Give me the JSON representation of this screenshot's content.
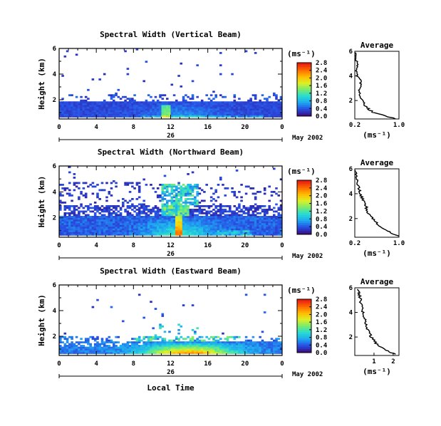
{
  "chart_data": [
    {
      "type": "heatmap",
      "title": "Spectral Width (Vertical Beam)",
      "ylabel": "Height (km)",
      "yticks": [
        "2",
        "4",
        "6"
      ],
      "ylim": [
        0.5,
        6
      ],
      "xticks": [
        "0",
        "4",
        "8",
        "12",
        "16",
        "20",
        "0"
      ],
      "xlim": [
        0,
        24
      ],
      "day_label": "26",
      "date_label": "May 2002",
      "colorbar": {
        "unit": "(ms⁻¹)",
        "ticks": [
          "0.0",
          "0.4",
          "0.8",
          "1.2",
          "1.6",
          "2.0",
          "2.4",
          "2.8"
        ],
        "range": [
          0,
          2.8
        ]
      },
      "average": {
        "title": "Average",
        "xlabel": "(ms⁻¹)",
        "xticks": [
          "0.2",
          "1.0"
        ],
        "xlim": [
          0.2,
          1.0
        ],
        "yticks": [
          "2",
          "4",
          "6"
        ],
        "ylim": [
          0.5,
          6
        ],
        "heights": [
          0.5,
          1.0,
          1.3,
          1.6,
          2.0,
          2.5,
          3.0,
          3.5,
          4.0,
          4.5,
          5.0,
          5.5,
          5.9
        ],
        "values": [
          0.95,
          0.55,
          0.45,
          0.38,
          0.33,
          0.3,
          0.28,
          0.32,
          0.25,
          0.22,
          0.26,
          0.21,
          0.2
        ]
      }
    },
    {
      "type": "heatmap",
      "title": "Spectral Width (Northward Beam)",
      "ylabel": "Height (km)",
      "yticks": [
        "2",
        "4",
        "6"
      ],
      "ylim": [
        0.5,
        6
      ],
      "xticks": [
        "0",
        "4",
        "8",
        "12",
        "16",
        "20",
        "0"
      ],
      "xlim": [
        0,
        24
      ],
      "day_label": "26",
      "date_label": "May 2002",
      "colorbar": {
        "unit": "(ms⁻¹)",
        "ticks": [
          "0.0",
          "0.4",
          "0.8",
          "1.2",
          "1.6",
          "2.0",
          "2.4",
          "2.8"
        ],
        "range": [
          0,
          2.8
        ]
      },
      "average": {
        "title": "Average",
        "xlabel": "(ms⁻¹)",
        "xticks": [
          "0.2",
          "1.0"
        ],
        "xlim": [
          0.2,
          1.0
        ],
        "yticks": [
          "2",
          "4",
          "6"
        ],
        "ylim": [
          0.5,
          6
        ],
        "heights": [
          0.6,
          1.0,
          1.5,
          2.0,
          2.5,
          3.0,
          3.5,
          4.0,
          4.5,
          5.0,
          5.5,
          5.9
        ],
        "values": [
          0.98,
          0.8,
          0.62,
          0.52,
          0.44,
          0.4,
          0.35,
          0.3,
          0.27,
          0.25,
          0.22,
          0.21
        ]
      }
    },
    {
      "type": "heatmap",
      "title": "Spectral Width (Eastward Beam)",
      "ylabel": "Height (km)",
      "yticks": [
        "2",
        "4",
        "6"
      ],
      "ylim": [
        0.5,
        6
      ],
      "xticks": [
        "0",
        "4",
        "8",
        "12",
        "16",
        "20",
        "0"
      ],
      "xlim": [
        0,
        24
      ],
      "day_label": "26",
      "date_label": "May 2002",
      "xlabel": "Local Time",
      "colorbar": {
        "unit": "(ms⁻¹)",
        "ticks": [
          "0.0",
          "0.4",
          "0.8",
          "1.2",
          "1.6",
          "2.0",
          "2.4",
          "2.8"
        ],
        "range": [
          0,
          2.8
        ]
      },
      "average": {
        "title": "Average",
        "xlabel": "(ms⁻¹)",
        "xticks": [
          "1",
          "2"
        ],
        "xlim": [
          0,
          2.3
        ],
        "yticks": [
          "2",
          "4",
          "6"
        ],
        "ylim": [
          0.5,
          6
        ],
        "heights": [
          0.6,
          1.0,
          1.5,
          2.0,
          2.5,
          3.0,
          3.5,
          4.0,
          4.5,
          5.0,
          5.5,
          5.9
        ],
        "values": [
          2.1,
          1.5,
          1.1,
          0.85,
          0.7,
          0.6,
          0.5,
          0.42,
          0.35,
          0.3,
          0.22,
          0.15
        ]
      }
    }
  ]
}
